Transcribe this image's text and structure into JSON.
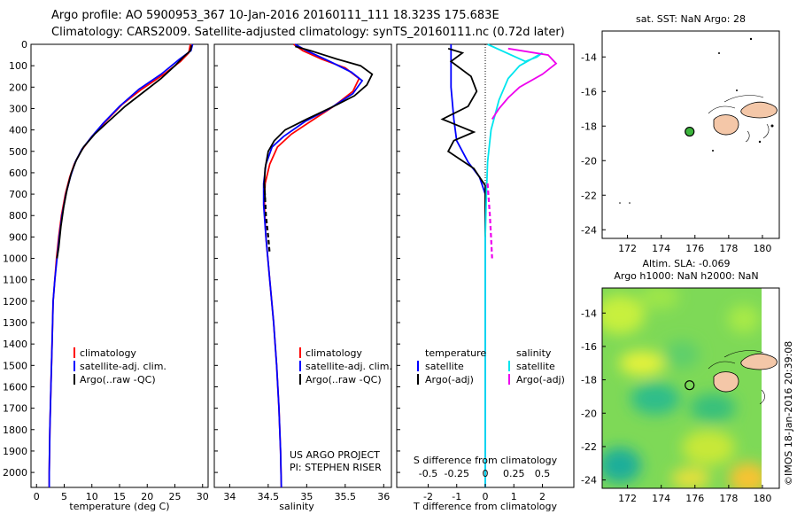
{
  "header": {
    "line1": "Argo profile: AO 5900953_367 10-Jan-2016 20160111_111 18.323S 175.683E",
    "line2": "Climatology: CARS2009. Satellite-adjusted climatology: synTS_20160111.nc (0.72d later)"
  },
  "credit": "©IMOS 18-Jan-2016 20:39:08",
  "colors": {
    "climatology": "#ff0000",
    "satellite": "#0000ff",
    "argo": "#000000",
    "salinity_satellite": "#00e5ee",
    "salinity_argo": "#ee00ee",
    "land": "#f4c7a8"
  },
  "chart_data": [
    {
      "type": "line",
      "panel": "temperature",
      "xlabel": "temperature (deg C)",
      "ylabel": "",
      "xlim": [
        -1,
        31
      ],
      "ylim": [
        2070,
        0
      ],
      "y_inverted": true,
      "xticks": [
        0,
        5,
        10,
        15,
        20,
        25,
        30
      ],
      "yticks": [
        0,
        100,
        200,
        300,
        400,
        500,
        600,
        700,
        800,
        900,
        1000,
        1100,
        1200,
        1300,
        1400,
        1500,
        1600,
        1700,
        1800,
        1900,
        2000
      ],
      "legend": [
        "climatology",
        "satellite-adj. clim.",
        "Argo(..raw -QC)"
      ],
      "series": [
        {
          "name": "climatology",
          "color": "#ff0000",
          "dash": false,
          "points": [
            [
              27.8,
              0
            ],
            [
              27.5,
              40
            ],
            [
              26,
              80
            ],
            [
              23,
              140
            ],
            [
              19,
              210
            ],
            [
              15.5,
              280
            ],
            [
              12.5,
              360
            ],
            [
              10,
              430
            ],
            [
              8,
              500
            ],
            [
              6.8,
              560
            ],
            [
              6,
              620
            ],
            [
              5.2,
              700
            ],
            [
              4.5,
              800
            ],
            [
              4,
              900
            ],
            [
              3.6,
              1000
            ],
            [
              3.3,
              1100
            ],
            [
              3,
              1200
            ],
            [
              2.8,
              1400
            ],
            [
              2.6,
              1600
            ],
            [
              2.4,
              1800
            ],
            [
              2.3,
              2000
            ],
            [
              2.3,
              2070
            ]
          ]
        },
        {
          "name": "satellite-adj. clim.",
          "color": "#0000ff",
          "dash": false,
          "points": [
            [
              28.2,
              0
            ],
            [
              27.9,
              30
            ],
            [
              25.8,
              70
            ],
            [
              22.5,
              140
            ],
            [
              18.5,
              210
            ],
            [
              15,
              290
            ],
            [
              12,
              370
            ],
            [
              10,
              430
            ],
            [
              8.2,
              490
            ],
            [
              7,
              550
            ],
            [
              6.1,
              620
            ],
            [
              5.3,
              700
            ],
            [
              4.6,
              800
            ],
            [
              4.1,
              900
            ],
            [
              3.7,
              1000
            ],
            [
              3.3,
              1100
            ],
            [
              3,
              1200
            ],
            [
              2.8,
              1400
            ],
            [
              2.6,
              1600
            ],
            [
              2.4,
              1800
            ],
            [
              2.3,
              2000
            ],
            [
              2.3,
              2070
            ]
          ]
        },
        {
          "name": "Argo(..raw -QC)",
          "color": "#000000",
          "dash": false,
          "points": [
            [
              28,
              5
            ],
            [
              27.8,
              30
            ],
            [
              26.5,
              60
            ],
            [
              25,
              100
            ],
            [
              22.5,
              160
            ],
            [
              19.5,
              220
            ],
            [
              16,
              290
            ],
            [
              13,
              360
            ],
            [
              10.5,
              420
            ],
            [
              8.5,
              480
            ],
            [
              7.2,
              540
            ],
            [
              6.3,
              600
            ],
            [
              5.5,
              680
            ],
            [
              4.9,
              760
            ],
            [
              4.4,
              850
            ],
            [
              4,
              950
            ],
            [
              3.7,
              1000
            ]
          ]
        }
      ]
    },
    {
      "type": "line",
      "panel": "salinity",
      "xlabel": "salinity",
      "ylabel": "",
      "xlim": [
        33.8,
        36.1
      ],
      "ylim": [
        2070,
        0
      ],
      "y_inverted": true,
      "xticks": [
        34,
        34.5,
        35,
        35.5,
        36
      ],
      "legend": [
        "climatology",
        "satellite-adj. clim.",
        "Argo(..raw -QC)"
      ],
      "annotations": [
        "US ARGO PROJECT",
        "PI: STEPHEN RISER"
      ],
      "series": [
        {
          "name": "climatology",
          "color": "#ff0000",
          "dash": false,
          "points": [
            [
              34.83,
              0
            ],
            [
              34.95,
              30
            ],
            [
              35.2,
              70
            ],
            [
              35.5,
              110
            ],
            [
              35.68,
              160
            ],
            [
              35.6,
              220
            ],
            [
              35.35,
              290
            ],
            [
              35.05,
              360
            ],
            [
              34.8,
              420
            ],
            [
              34.62,
              480
            ],
            [
              34.52,
              560
            ],
            [
              34.46,
              650
            ],
            [
              34.45,
              750
            ],
            [
              34.47,
              900
            ],
            [
              34.52,
              1100
            ],
            [
              34.57,
              1300
            ],
            [
              34.61,
              1500
            ],
            [
              34.64,
              1700
            ],
            [
              34.66,
              1900
            ],
            [
              34.67,
              2070
            ]
          ]
        },
        {
          "name": "satellite-adj. clim.",
          "color": "#0000ff",
          "dash": false,
          "points": [
            [
              34.85,
              0
            ],
            [
              35.0,
              30
            ],
            [
              35.3,
              80
            ],
            [
              35.58,
              130
            ],
            [
              35.72,
              170
            ],
            [
              35.6,
              230
            ],
            [
              35.3,
              300
            ],
            [
              34.98,
              360
            ],
            [
              34.7,
              430
            ],
            [
              34.55,
              480
            ],
            [
              34.47,
              560
            ],
            [
              34.44,
              650
            ],
            [
              34.44,
              750
            ],
            [
              34.47,
              900
            ],
            [
              34.52,
              1100
            ],
            [
              34.57,
              1300
            ],
            [
              34.61,
              1500
            ],
            [
              34.64,
              1700
            ],
            [
              34.66,
              1900
            ],
            [
              34.67,
              2070
            ]
          ]
        },
        {
          "name": "Argo(..raw -QC)",
          "color": "#000000",
          "dash": false,
          "points": [
            [
              34.85,
              10
            ],
            [
              35.05,
              30
            ],
            [
              35.4,
              70
            ],
            [
              35.7,
              100
            ],
            [
              35.85,
              140
            ],
            [
              35.78,
              190
            ],
            [
              35.62,
              240
            ],
            [
              35.35,
              290
            ],
            [
              35.0,
              350
            ],
            [
              34.72,
              400
            ],
            [
              34.58,
              450
            ],
            [
              34.5,
              500
            ],
            [
              34.46,
              580
            ],
            [
              34.45,
              650
            ],
            [
              34.46,
              720
            ]
          ]
        },
        {
          "name": "Argo(..raw -QC) dashed",
          "color": "#000000",
          "dash": true,
          "points": [
            [
              34.45,
              650
            ],
            [
              34.47,
              800
            ],
            [
              34.5,
              900
            ],
            [
              34.52,
              980
            ]
          ]
        }
      ]
    },
    {
      "type": "line",
      "panel": "difference",
      "xlabel": "T difference from climatology",
      "xlabel_top": "S difference from climatology",
      "ylim": [
        2070,
        0
      ],
      "y_inverted": true,
      "xlim_T": [
        -3.1,
        3.1
      ],
      "xticks_T": [
        -2,
        -1,
        0,
        1,
        2
      ],
      "xticks_S": [
        -0.5,
        -0.25,
        0,
        0.25,
        0.5
      ],
      "legend_titles": [
        "temperature",
        "salinity"
      ],
      "legend": [
        "satellite",
        "Argo(-adj)",
        "satellite",
        "Argo(-adj)"
      ],
      "series": [
        {
          "name": "temperature satellite",
          "color": "#0000ff",
          "dash": false,
          "points": [
            [
              -1.2,
              0
            ],
            [
              -1.2,
              80
            ],
            [
              -1.2,
              200
            ],
            [
              -1.1,
              350
            ],
            [
              -1,
              450
            ],
            [
              -0.6,
              550
            ],
            [
              -0.2,
              620
            ],
            [
              0,
              700
            ],
            [
              0,
              800
            ],
            [
              0,
              1000
            ],
            [
              0,
              2070
            ]
          ]
        },
        {
          "name": "temperature Argo(-adj)",
          "color": "#000000",
          "dash": false,
          "points": [
            [
              -1.3,
              20
            ],
            [
              -0.8,
              40
            ],
            [
              -1.2,
              80
            ],
            [
              -0.5,
              150
            ],
            [
              -0.3,
              220
            ],
            [
              -0.6,
              290
            ],
            [
              -1.5,
              350
            ],
            [
              -0.4,
              410
            ],
            [
              -1.1,
              450
            ],
            [
              -1.3,
              500
            ],
            [
              -0.4,
              580
            ],
            [
              -0.2,
              620
            ],
            [
              0,
              660
            ],
            [
              0,
              750
            ],
            [
              0,
              900
            ]
          ]
        },
        {
          "name": "salinity satellite",
          "color": "#00e5ee",
          "dash": false,
          "points": [
            [
              0.02,
              0
            ],
            [
              0.35,
              80
            ],
            [
              0.45,
              60
            ],
            [
              0.5,
              40
            ],
            [
              0.3,
              100
            ],
            [
              0.2,
              160
            ],
            [
              0.12,
              260
            ],
            [
              0.05,
              400
            ],
            [
              0.02,
              550
            ],
            [
              0.01,
              700
            ],
            [
              0,
              900
            ],
            [
              0,
              2070
            ]
          ]
        },
        {
          "name": "salinity Argo(-adj)",
          "color": "#ee00ee",
          "dash": false,
          "points": [
            [
              0.2,
              20
            ],
            [
              0.55,
              50
            ],
            [
              0.62,
              90
            ],
            [
              0.5,
              140
            ],
            [
              0.3,
              200
            ],
            [
              0.2,
              250
            ],
            [
              0.12,
              300
            ],
            [
              0.06,
              350
            ]
          ]
        },
        {
          "name": "salinity Argo(-adj) dashed",
          "color": "#ee00ee",
          "dash": true,
          "points": [
            [
              0.02,
              650
            ],
            [
              0.04,
              800
            ],
            [
              0.05,
              900
            ],
            [
              0.06,
              1000
            ]
          ]
        }
      ]
    },
    {
      "type": "scatter",
      "panel": "sst-map",
      "title": "sat. SST: NaN Argo: 28",
      "xlim": [
        170.5,
        181
      ],
      "ylim": [
        -24.5,
        -12.5
      ],
      "xticks": [
        172,
        174,
        176,
        178,
        180
      ],
      "yticks": [
        -14,
        -16,
        -18,
        -20,
        -22,
        -24
      ],
      "points": [
        {
          "x": 175.683,
          "y": -18.323,
          "label": "Argo float"
        }
      ]
    },
    {
      "type": "heatmap",
      "panel": "sla-map",
      "title": "Altim. SLA: -0.069",
      "subtitle": "Argo h1000: NaN h2000: NaN",
      "xlim": [
        170.5,
        181
      ],
      "ylim": [
        -24.5,
        -12.5
      ],
      "xticks": [
        172,
        174,
        176,
        178,
        180
      ],
      "yticks": [
        -14,
        -16,
        -18,
        -20,
        -22,
        -24
      ],
      "points": [
        {
          "x": 175.683,
          "y": -18.323,
          "label": "Argo float"
        }
      ]
    }
  ]
}
